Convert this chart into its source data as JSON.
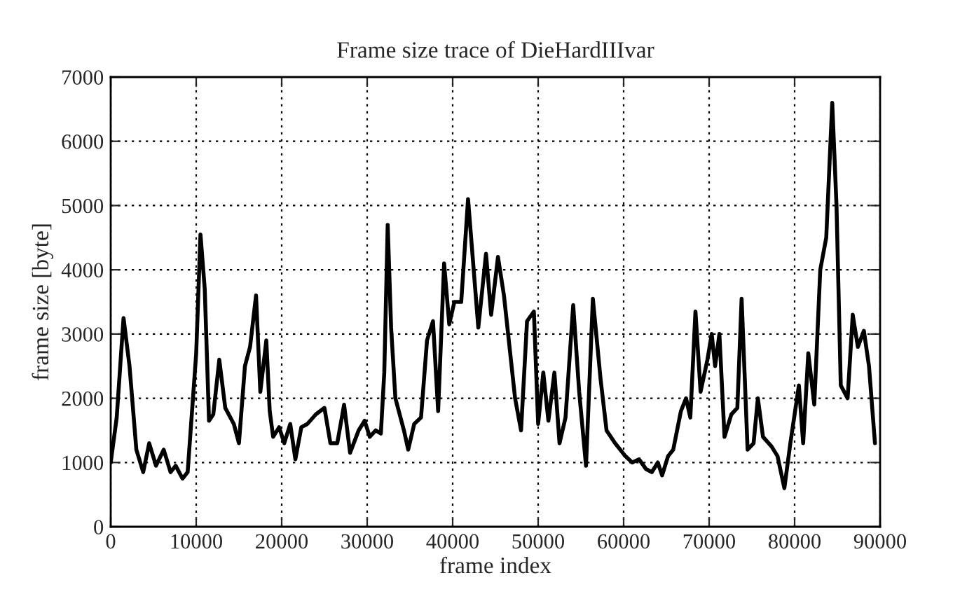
{
  "chart_data": {
    "type": "line",
    "title": "Frame size trace of DieHardIIIvar",
    "xlabel": "frame index",
    "ylabel": "frame size [byte]",
    "x": [
      0,
      700,
      1500,
      2200,
      3000,
      3800,
      4500,
      5300,
      6200,
      7000,
      7600,
      8400,
      9000,
      10000,
      10500,
      11000,
      11500,
      12000,
      12700,
      13400,
      14400,
      15000,
      15700,
      16300,
      17000,
      17500,
      18200,
      18600,
      19000,
      19700,
      20300,
      21000,
      21600,
      22300,
      23000,
      24000,
      25000,
      25700,
      26500,
      27300,
      28000,
      29000,
      29700,
      30300,
      31000,
      31600,
      32000,
      32400,
      32800,
      33300,
      34300,
      34800,
      35500,
      36300,
      37000,
      37700,
      38300,
      39000,
      39600,
      40200,
      41000,
      41800,
      43000,
      43900,
      44500,
      45300,
      46000,
      47300,
      48000,
      48700,
      49500,
      50000,
      50600,
      51200,
      51900,
      52500,
      53200,
      54100,
      54800,
      55600,
      56400,
      57300,
      58000,
      59000,
      60200,
      61000,
      61800,
      62600,
      63300,
      64000,
      64500,
      65200,
      65800,
      66700,
      67300,
      67800,
      68400,
      69000,
      69800,
      70300,
      70700,
      71200,
      71800,
      72600,
      73300,
      73800,
      74500,
      75200,
      75700,
      76300,
      77300,
      78000,
      78800,
      79500,
      80500,
      81000,
      81600,
      82300,
      83000,
      83700,
      84400,
      84900,
      85400,
      86200,
      86800,
      87400,
      88100,
      88700,
      89400
    ],
    "series": [
      {
        "color": "#000000",
        "values": [
          1000,
          1700,
          3250,
          2500,
          1200,
          850,
          1300,
          950,
          1200,
          850,
          950,
          750,
          850,
          2700,
          4550,
          3700,
          1650,
          1750,
          2600,
          1850,
          1600,
          1300,
          2500,
          2800,
          3600,
          2100,
          2900,
          1800,
          1400,
          1550,
          1300,
          1600,
          1050,
          1550,
          1600,
          1750,
          1850,
          1300,
          1300,
          1900,
          1150,
          1500,
          1650,
          1400,
          1500,
          1450,
          2400,
          4700,
          3100,
          2000,
          1500,
          1200,
          1600,
          1700,
          2900,
          3200,
          1800,
          4100,
          3150,
          3500,
          3500,
          5100,
          3100,
          4250,
          3300,
          4200,
          3600,
          2000,
          1500,
          3200,
          3350,
          1600,
          2400,
          1650,
          2400,
          1300,
          1700,
          3450,
          2100,
          950,
          3550,
          2300,
          1500,
          1300,
          1100,
          1000,
          1050,
          900,
          850,
          1000,
          800,
          1100,
          1200,
          1800,
          2000,
          1700,
          3350,
          2100,
          2600,
          3000,
          2500,
          3000,
          1400,
          1750,
          1850,
          3550,
          1200,
          1300,
          2000,
          1400,
          1250,
          1100,
          600,
          1300,
          2200,
          1300,
          2700,
          1900,
          4000,
          4500,
          6600,
          5000,
          2200,
          2000,
          3300,
          2800,
          3050,
          2500,
          1300
        ]
      }
    ],
    "xlim": [
      0,
      90000
    ],
    "xticks": [
      0,
      10000,
      20000,
      30000,
      40000,
      50000,
      60000,
      70000,
      80000,
      90000
    ],
    "ylim": [
      0,
      7000
    ],
    "yticks": [
      0,
      1000,
      2000,
      3000,
      4000,
      5000,
      6000,
      7000
    ],
    "grid": true,
    "line_style": "solid",
    "legend": false
  }
}
